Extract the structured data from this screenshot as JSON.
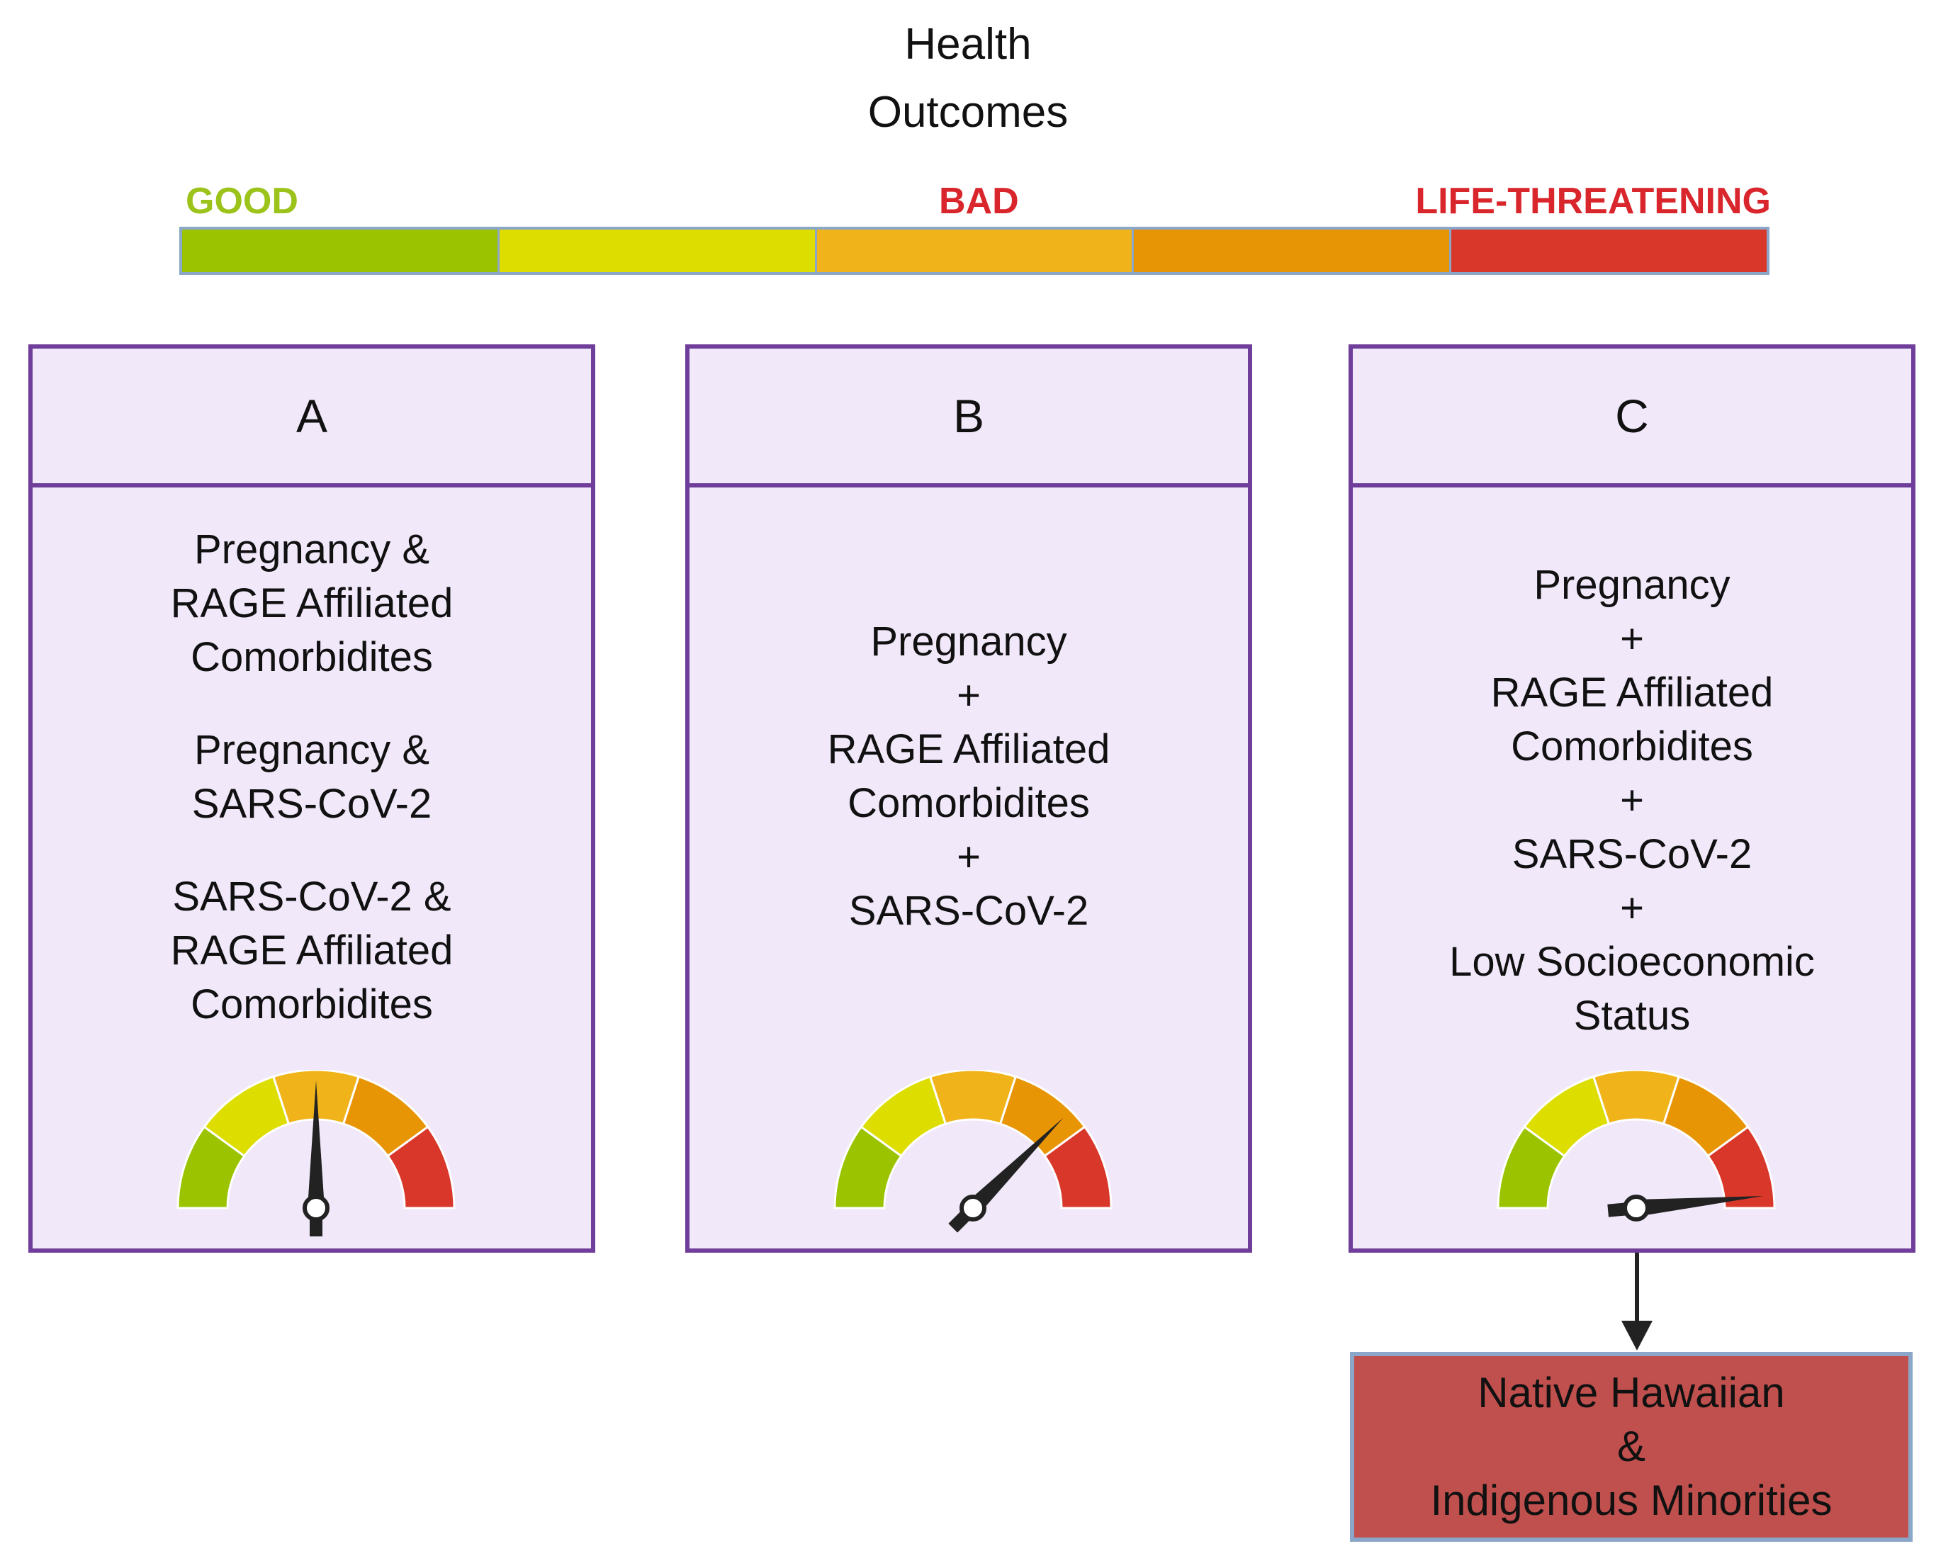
{
  "title": {
    "line1": "Health",
    "line2": "Outcomes"
  },
  "scale": {
    "labels": {
      "good": {
        "text": "GOOD",
        "color": "#9bc31a"
      },
      "bad": {
        "text": "BAD",
        "color": "#d9262c"
      },
      "life_threatening": {
        "text": "LIFE-THREATENING",
        "color": "#d9262c"
      }
    },
    "segment_colors": [
      "#9bc300",
      "#dedd00",
      "#f0b41a",
      "#e89505",
      "#d9372a"
    ]
  },
  "panels": {
    "a": {
      "label": "A",
      "groups": [
        [
          "Pregnancy &",
          "RAGE Affiliated",
          "Comorbidites"
        ],
        [
          "Pregnancy &",
          "SARS-CoV-2"
        ],
        [
          "SARS-CoV-2 &",
          "RAGE Affiliated",
          "Comorbidites"
        ]
      ],
      "gauge_level": 0.5
    },
    "b": {
      "label": "B",
      "groups": [
        [
          "Pregnancy",
          "+",
          "RAGE Affiliated",
          "Comorbidites",
          "+",
          "SARS-CoV-2"
        ]
      ],
      "gauge_level": 0.75
    },
    "c": {
      "label": "C",
      "groups": [
        [
          "Pregnancy",
          "+",
          "RAGE Affiliated",
          "Comorbidites",
          "+",
          "SARS-CoV-2",
          "+",
          "Low Socioeconomic",
          "Status"
        ]
      ],
      "gauge_level": 0.97
    }
  },
  "result_box": {
    "lines": [
      "Native Hawaiian",
      "&",
      "Indigenous Minorities"
    ],
    "fill_color": "#c0504d"
  }
}
